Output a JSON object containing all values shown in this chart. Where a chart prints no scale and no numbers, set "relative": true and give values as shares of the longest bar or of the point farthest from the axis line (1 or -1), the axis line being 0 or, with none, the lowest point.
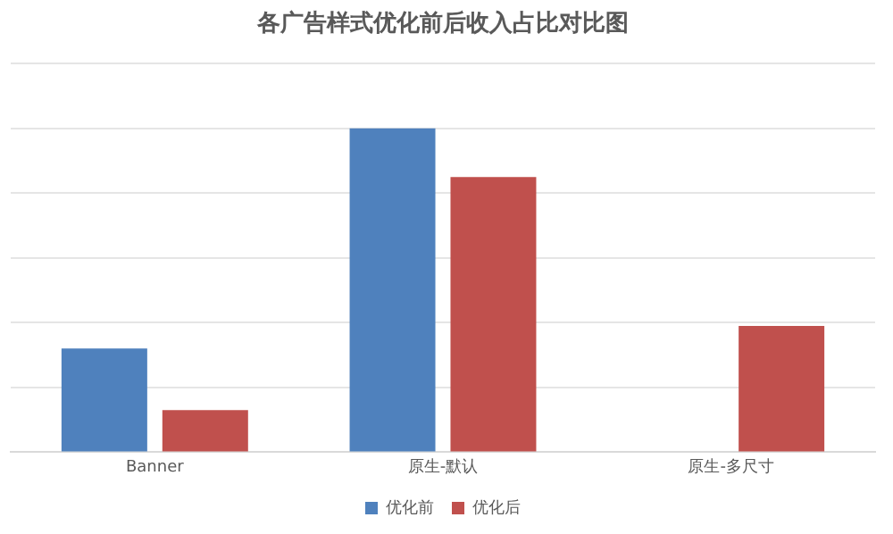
{
  "chart_data": {
    "type": "bar",
    "title": "各广告样式优化前后收入占比对比图",
    "categories": [
      "Banner",
      "原生-默认",
      "原生-多尺寸"
    ],
    "relative": true,
    "grid": "y",
    "legend": "bottom",
    "series": [
      {
        "name": "优化前",
        "color": "#4f81bd",
        "values": [
          0.32,
          1,
          null
        ]
      },
      {
        "name": "优化后",
        "color": "#c0504d",
        "values": [
          0.13,
          0.85,
          0.39
        ]
      }
    ]
  }
}
